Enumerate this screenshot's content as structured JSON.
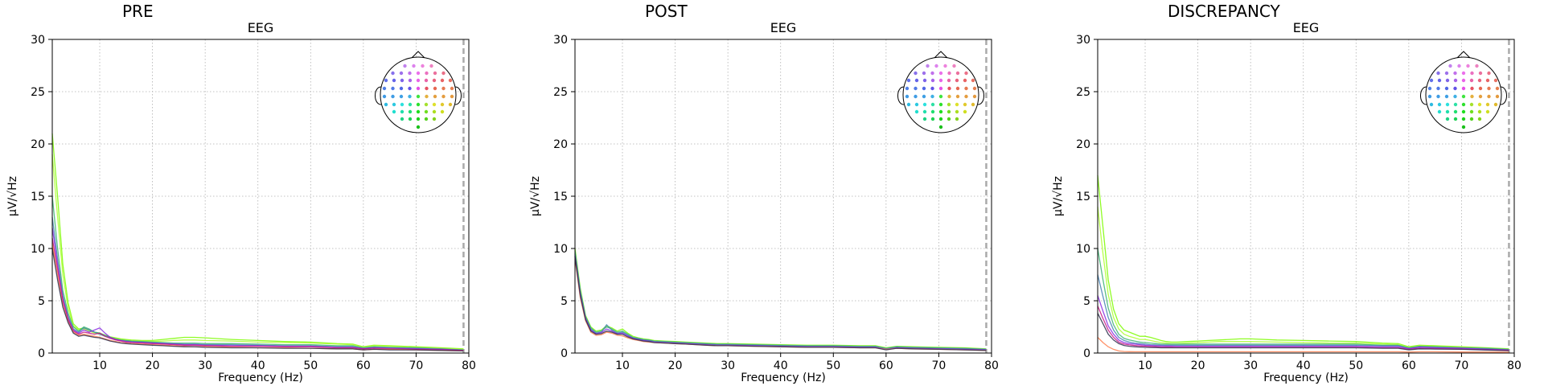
{
  "figure": {
    "panel_titles": [
      "PRE",
      "POST",
      "DISCREPANCY"
    ]
  },
  "chart_data": [
    {
      "type": "line",
      "title": "EEG",
      "figure_title": "PRE",
      "xlabel": "Frequency (Hz)",
      "ylabel": "µV/√Hz",
      "xlim": [
        1,
        80
      ],
      "ylim": [
        0,
        30
      ],
      "xticks": [
        10,
        20,
        30,
        40,
        50,
        60,
        70,
        80
      ],
      "yticks": [
        0,
        5,
        10,
        15,
        20,
        25,
        30
      ],
      "grid": true,
      "vline_x": 79,
      "inset": "sensor-layout head at top-right",
      "x": [
        1,
        2,
        3,
        4,
        5,
        6,
        7,
        8,
        9,
        10,
        11,
        12,
        13,
        14,
        15,
        16,
        18,
        20,
        22,
        24,
        26,
        28,
        30,
        35,
        40,
        45,
        50,
        55,
        58,
        60,
        62,
        65,
        70,
        75,
        79
      ],
      "series": [
        {
          "color": "#7cfc00",
          "values": [
            21,
            15,
            8.5,
            4.8,
            2.8,
            2.3,
            2.4,
            2.2,
            2.0,
            1.9,
            1.7,
            1.55,
            1.45,
            1.35,
            1.3,
            1.25,
            1.2,
            1.2,
            1.3,
            1.4,
            1.5,
            1.5,
            1.45,
            1.3,
            1.2,
            1.1,
            1.05,
            0.9,
            0.85,
            0.6,
            0.75,
            0.7,
            0.6,
            0.5,
            0.4
          ]
        },
        {
          "color": "#adff2f",
          "values": [
            19,
            13,
            7.5,
            4.3,
            2.6,
            2.2,
            2.3,
            2.1,
            1.9,
            1.8,
            1.65,
            1.5,
            1.4,
            1.3,
            1.25,
            1.2,
            1.15,
            1.1,
            1.15,
            1.2,
            1.25,
            1.25,
            1.2,
            1.15,
            1.05,
            1.0,
            0.95,
            0.85,
            0.8,
            0.55,
            0.7,
            0.65,
            0.55,
            0.45,
            0.35
          ]
        },
        {
          "color": "#3cb371",
          "values": [
            15,
            10,
            6,
            3.8,
            2.5,
            2.1,
            2.5,
            2.3,
            2.0,
            1.9,
            1.7,
            1.5,
            1.35,
            1.25,
            1.2,
            1.15,
            1.1,
            1.05,
            1.0,
            0.95,
            0.95,
            0.95,
            0.9,
            0.9,
            0.85,
            0.8,
            0.8,
            0.7,
            0.7,
            0.5,
            0.6,
            0.55,
            0.5,
            0.4,
            0.3
          ]
        },
        {
          "color": "#4682b4",
          "values": [
            13,
            9,
            5.5,
            3.5,
            2.3,
            2.0,
            2.4,
            2.2,
            2.0,
            1.8,
            1.6,
            1.45,
            1.3,
            1.2,
            1.15,
            1.1,
            1.05,
            1.0,
            0.95,
            0.9,
            0.85,
            0.85,
            0.8,
            0.8,
            0.75,
            0.7,
            0.7,
            0.6,
            0.6,
            0.45,
            0.55,
            0.5,
            0.45,
            0.35,
            0.3
          ]
        },
        {
          "color": "#8a2be2",
          "values": [
            12,
            8.5,
            5.2,
            3.3,
            2.2,
            1.9,
            2.2,
            2.0,
            2.2,
            2.4,
            1.9,
            1.5,
            1.3,
            1.2,
            1.1,
            1.05,
            1.0,
            0.95,
            0.9,
            0.85,
            0.8,
            0.8,
            0.75,
            0.7,
            0.7,
            0.65,
            0.65,
            0.55,
            0.55,
            0.4,
            0.5,
            0.45,
            0.4,
            0.35,
            0.25
          ]
        },
        {
          "color": "#c71585",
          "values": [
            11,
            8,
            5,
            3.2,
            2.1,
            1.8,
            2.0,
            1.9,
            1.8,
            1.9,
            1.6,
            1.4,
            1.25,
            1.15,
            1.05,
            1.0,
            0.95,
            0.9,
            0.85,
            0.8,
            0.75,
            0.75,
            0.7,
            0.65,
            0.65,
            0.6,
            0.6,
            0.5,
            0.5,
            0.4,
            0.45,
            0.4,
            0.35,
            0.3,
            0.25
          ]
        },
        {
          "color": "#ff7f50",
          "values": [
            10.5,
            7.5,
            4.6,
            3.0,
            2.0,
            1.7,
            1.8,
            1.7,
            1.6,
            1.5,
            1.35,
            1.2,
            1.1,
            1.0,
            0.95,
            0.9,
            0.85,
            0.8,
            0.75,
            0.7,
            0.65,
            0.6,
            0.6,
            0.55,
            0.5,
            0.5,
            0.45,
            0.4,
            0.4,
            0.3,
            0.35,
            0.35,
            0.3,
            0.25,
            0.2
          ]
        },
        {
          "color": "#2f2f4f",
          "values": [
            10,
            7,
            4.4,
            2.9,
            1.9,
            1.6,
            1.7,
            1.6,
            1.5,
            1.45,
            1.3,
            1.15,
            1.05,
            0.95,
            0.9,
            0.85,
            0.8,
            0.75,
            0.7,
            0.65,
            0.6,
            0.6,
            0.55,
            0.5,
            0.5,
            0.45,
            0.45,
            0.4,
            0.4,
            0.3,
            0.35,
            0.3,
            0.3,
            0.25,
            0.2
          ]
        }
      ]
    },
    {
      "type": "line",
      "title": "EEG",
      "figure_title": "POST",
      "xlabel": "Frequency (Hz)",
      "ylabel": "µV/√Hz",
      "xlim": [
        1,
        80
      ],
      "ylim": [
        0,
        30
      ],
      "xticks": [
        10,
        20,
        30,
        40,
        50,
        60,
        70,
        80
      ],
      "yticks": [
        0,
        5,
        10,
        15,
        20,
        25,
        30
      ],
      "grid": true,
      "vline_x": 79,
      "inset": "sensor-layout head at top-right",
      "x": [
        1,
        2,
        3,
        4,
        5,
        6,
        7,
        8,
        9,
        10,
        11,
        12,
        13,
        14,
        15,
        16,
        18,
        20,
        22,
        24,
        26,
        28,
        30,
        35,
        40,
        45,
        50,
        55,
        58,
        60,
        62,
        65,
        70,
        75,
        79
      ],
      "series": [
        {
          "color": "#7cfc00",
          "values": [
            10,
            6.2,
            3.6,
            2.5,
            2.1,
            2.2,
            2.6,
            2.4,
            2.1,
            2.3,
            1.9,
            1.6,
            1.45,
            1.35,
            1.3,
            1.2,
            1.15,
            1.1,
            1.05,
            1.0,
            0.95,
            0.9,
            0.9,
            0.85,
            0.8,
            0.75,
            0.75,
            0.7,
            0.7,
            0.5,
            0.65,
            0.6,
            0.55,
            0.5,
            0.4
          ]
        },
        {
          "color": "#3cb371",
          "values": [
            9.8,
            6.0,
            3.5,
            2.4,
            2.0,
            2.1,
            2.5,
            2.3,
            2.0,
            2.1,
            1.8,
            1.5,
            1.4,
            1.3,
            1.25,
            1.15,
            1.1,
            1.05,
            1.0,
            0.95,
            0.9,
            0.85,
            0.85,
            0.8,
            0.75,
            0.7,
            0.7,
            0.65,
            0.65,
            0.45,
            0.6,
            0.55,
            0.5,
            0.45,
            0.35
          ]
        },
        {
          "color": "#4682b4",
          "values": [
            9.5,
            5.8,
            3.4,
            2.3,
            1.9,
            2.0,
            2.7,
            2.2,
            1.9,
            2.0,
            1.7,
            1.45,
            1.35,
            1.25,
            1.2,
            1.1,
            1.05,
            1.0,
            0.95,
            0.9,
            0.85,
            0.8,
            0.8,
            0.75,
            0.7,
            0.65,
            0.65,
            0.6,
            0.6,
            0.4,
            0.55,
            0.5,
            0.45,
            0.4,
            0.35
          ]
        },
        {
          "color": "#8a2be2",
          "values": [
            9.3,
            5.6,
            3.3,
            2.2,
            1.85,
            1.95,
            2.3,
            2.1,
            1.85,
            1.9,
            1.65,
            1.4,
            1.3,
            1.2,
            1.15,
            1.05,
            1.0,
            0.95,
            0.9,
            0.85,
            0.8,
            0.75,
            0.75,
            0.7,
            0.65,
            0.6,
            0.6,
            0.55,
            0.55,
            0.35,
            0.5,
            0.45,
            0.4,
            0.35,
            0.3
          ]
        },
        {
          "color": "#ff7f50",
          "values": [
            9.0,
            5.3,
            3.1,
            2.0,
            1.7,
            1.75,
            2.0,
            1.9,
            1.7,
            1.65,
            1.45,
            1.3,
            1.2,
            1.1,
            1.05,
            1.0,
            0.95,
            0.9,
            0.85,
            0.8,
            0.75,
            0.7,
            0.7,
            0.65,
            0.6,
            0.55,
            0.55,
            0.5,
            0.5,
            0.35,
            0.45,
            0.4,
            0.35,
            0.3,
            0.25
          ]
        },
        {
          "color": "#2f2f4f",
          "values": [
            9.2,
            5.5,
            3.2,
            2.1,
            1.8,
            1.85,
            2.1,
            2.0,
            1.8,
            1.8,
            1.55,
            1.35,
            1.25,
            1.15,
            1.1,
            1.0,
            0.95,
            0.9,
            0.85,
            0.8,
            0.75,
            0.7,
            0.7,
            0.65,
            0.6,
            0.55,
            0.55,
            0.5,
            0.5,
            0.3,
            0.45,
            0.4,
            0.35,
            0.3,
            0.25
          ]
        }
      ]
    },
    {
      "type": "line",
      "title": "EEG",
      "figure_title": "DISCREPANCY",
      "xlabel": "Frequency (Hz)",
      "ylabel": "µV/√Hz",
      "xlim": [
        1,
        80
      ],
      "ylim": [
        0,
        30
      ],
      "xticks": [
        10,
        20,
        30,
        40,
        50,
        60,
        70,
        80
      ],
      "yticks": [
        0,
        5,
        10,
        15,
        20,
        25,
        30
      ],
      "grid": true,
      "vline_x": 79,
      "inset": "sensor-layout head at top-right",
      "x": [
        1,
        2,
        3,
        4,
        5,
        6,
        7,
        8,
        9,
        10,
        11,
        12,
        13,
        14,
        15,
        16,
        18,
        20,
        22,
        24,
        26,
        28,
        30,
        35,
        40,
        45,
        50,
        55,
        58,
        60,
        62,
        65,
        70,
        75,
        79
      ],
      "series": [
        {
          "color": "#7cfc00",
          "values": [
            17,
            12,
            7,
            4.2,
            2.8,
            2.2,
            2.0,
            1.8,
            1.6,
            1.6,
            1.5,
            1.35,
            1.2,
            1.1,
            1.05,
            1.05,
            1.1,
            1.15,
            1.2,
            1.25,
            1.3,
            1.35,
            1.35,
            1.25,
            1.2,
            1.15,
            1.1,
            0.95,
            0.9,
            0.6,
            0.75,
            0.7,
            0.6,
            0.5,
            0.4
          ]
        },
        {
          "color": "#adff2f",
          "values": [
            14,
            9.5,
            5.6,
            3.4,
            2.3,
            1.8,
            1.6,
            1.45,
            1.3,
            1.3,
            1.2,
            1.1,
            1.0,
            0.95,
            0.9,
            0.9,
            0.95,
            1.0,
            1.05,
            1.1,
            1.1,
            1.1,
            1.1,
            1.05,
            1.0,
            0.95,
            0.95,
            0.85,
            0.8,
            0.55,
            0.7,
            0.65,
            0.55,
            0.45,
            0.35
          ]
        },
        {
          "color": "#3cb371",
          "values": [
            10,
            7,
            4.3,
            2.7,
            1.8,
            1.4,
            1.25,
            1.15,
            1.05,
            1.0,
            0.95,
            0.9,
            0.85,
            0.85,
            0.85,
            0.85,
            0.85,
            0.85,
            0.85,
            0.85,
            0.85,
            0.85,
            0.85,
            0.85,
            0.85,
            0.85,
            0.85,
            0.75,
            0.75,
            0.5,
            0.65,
            0.6,
            0.5,
            0.45,
            0.35
          ]
        },
        {
          "color": "#4682b4",
          "values": [
            7.5,
            5.4,
            3.4,
            2.2,
            1.5,
            1.2,
            1.05,
            0.95,
            0.9,
            0.85,
            0.8,
            0.78,
            0.75,
            0.75,
            0.75,
            0.75,
            0.75,
            0.75,
            0.75,
            0.75,
            0.75,
            0.75,
            0.75,
            0.75,
            0.75,
            0.75,
            0.75,
            0.7,
            0.7,
            0.45,
            0.6,
            0.55,
            0.5,
            0.4,
            0.3
          ]
        },
        {
          "color": "#8a2be2",
          "values": [
            5.5,
            4.0,
            2.6,
            1.8,
            1.25,
            1.0,
            0.9,
            0.85,
            0.8,
            0.75,
            0.72,
            0.7,
            0.68,
            0.67,
            0.66,
            0.65,
            0.65,
            0.65,
            0.65,
            0.65,
            0.65,
            0.65,
            0.65,
            0.65,
            0.65,
            0.65,
            0.65,
            0.6,
            0.6,
            0.4,
            0.55,
            0.5,
            0.45,
            0.35,
            0.3
          ]
        },
        {
          "color": "#c71585",
          "values": [
            4.5,
            3.3,
            2.2,
            1.5,
            1.05,
            0.85,
            0.78,
            0.72,
            0.68,
            0.65,
            0.62,
            0.6,
            0.58,
            0.57,
            0.56,
            0.55,
            0.55,
            0.55,
            0.55,
            0.55,
            0.55,
            0.55,
            0.55,
            0.55,
            0.55,
            0.55,
            0.55,
            0.5,
            0.5,
            0.35,
            0.45,
            0.42,
            0.38,
            0.3,
            0.25
          ]
        },
        {
          "color": "#2f2f4f",
          "values": [
            3.8,
            2.8,
            1.8,
            1.25,
            0.9,
            0.72,
            0.65,
            0.6,
            0.57,
            0.55,
            0.53,
            0.52,
            0.5,
            0.5,
            0.5,
            0.5,
            0.5,
            0.5,
            0.5,
            0.5,
            0.5,
            0.5,
            0.5,
            0.5,
            0.5,
            0.5,
            0.5,
            0.45,
            0.45,
            0.3,
            0.4,
            0.38,
            0.35,
            0.28,
            0.22
          ]
        },
        {
          "color": "#ff7f50",
          "values": [
            1.5,
            1.0,
            0.6,
            0.35,
            0.2,
            0.15,
            0.13,
            0.12,
            0.12,
            0.12,
            0.12,
            0.12,
            0.12,
            0.12,
            0.12,
            0.12,
            0.12,
            0.12,
            0.12,
            0.12,
            0.12,
            0.12,
            0.12,
            0.12,
            0.12,
            0.12,
            0.12,
            0.12,
            0.12,
            0.1,
            0.12,
            0.12,
            0.1,
            0.1,
            0.08
          ]
        }
      ]
    }
  ]
}
